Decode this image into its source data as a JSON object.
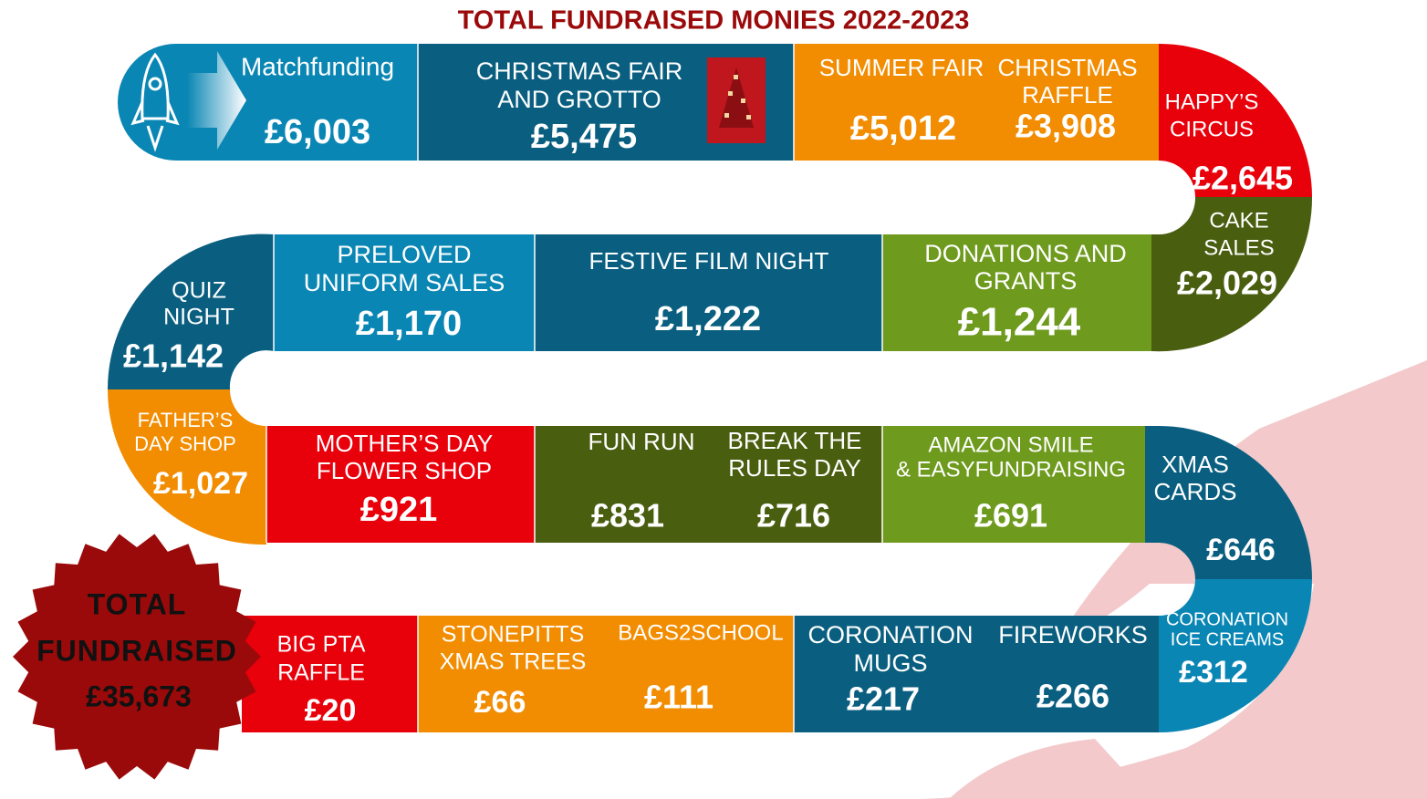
{
  "title": "TOTAL FUNDRAISED MONIES 2022-2023",
  "items": [
    {
      "label": [
        "Matchfunding"
      ],
      "amount": "£6,003"
    },
    {
      "label": [
        "CHRISTMAS FAIR",
        "AND GROTTO"
      ],
      "amount": "£5,475"
    },
    {
      "label": [
        "SUMMER FAIR"
      ],
      "amount": "£5,012"
    },
    {
      "label": [
        "CHRISTMAS",
        "RAFFLE"
      ],
      "amount": "£3,908"
    },
    {
      "label": [
        "HAPPY’S",
        "CIRCUS"
      ],
      "amount": "£2,645"
    },
    {
      "label": [
        "CAKE",
        "SALES"
      ],
      "amount": "£2,029"
    },
    {
      "label": [
        "DONATIONS AND",
        "GRANTS"
      ],
      "amount": "£1,244"
    },
    {
      "label": [
        "FESTIVE FILM NIGHT"
      ],
      "amount": "£1,222"
    },
    {
      "label": [
        "PRELOVED",
        "UNIFORM SALES"
      ],
      "amount": "£1,170"
    },
    {
      "label": [
        "QUIZ",
        "NIGHT"
      ],
      "amount": "£1,142"
    },
    {
      "label": [
        "FATHER’S",
        "DAY SHOP"
      ],
      "amount": "£1,027"
    },
    {
      "label": [
        "MOTHER’S DAY",
        "FLOWER SHOP"
      ],
      "amount": "£921"
    },
    {
      "label": [
        "FUN RUN"
      ],
      "amount": "£831"
    },
    {
      "label": [
        "BREAK THE",
        "RULES DAY"
      ],
      "amount": "£716"
    },
    {
      "label": [
        "AMAZON SMILE",
        "& EASYFUNDRAISING"
      ],
      "amount": "£691"
    },
    {
      "label": [
        "XMAS",
        "CARDS"
      ],
      "amount": "£646"
    },
    {
      "label": [
        "CORONATION",
        "ICE CREAMS"
      ],
      "amount": "£312"
    },
    {
      "label": [
        "FIREWORKS"
      ],
      "amount": "£266"
    },
    {
      "label": [
        "CORONATION",
        "MUGS"
      ],
      "amount": "£217"
    },
    {
      "label": [
        "BAGS2SCHOOL"
      ],
      "amount": "£111"
    },
    {
      "label": [
        "STONEPITTS",
        "XMAS TREES"
      ],
      "amount": "£66"
    },
    {
      "label": [
        "BIG PTA",
        "RAFFLE"
      ],
      "amount": "£20"
    }
  ],
  "total": {
    "lines": [
      "TOTAL",
      "FUNDRAISED"
    ],
    "amount": "£35,673"
  }
}
